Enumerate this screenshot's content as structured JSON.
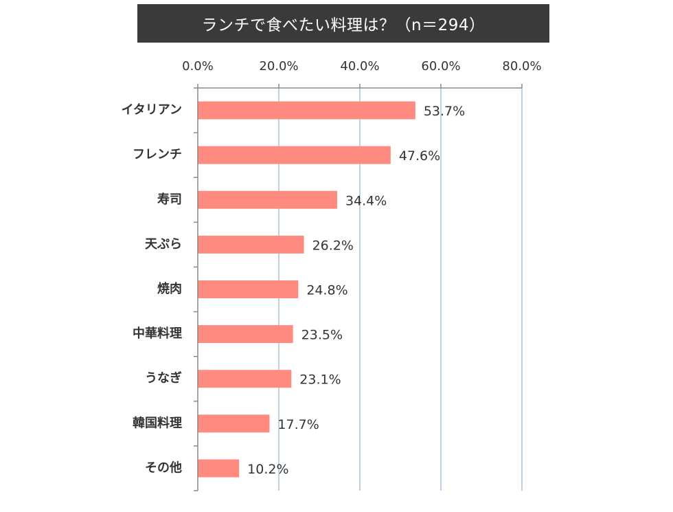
{
  "chart_data": {
    "type": "bar",
    "orientation": "horizontal",
    "title": "ランチで食べたい料理は？（n＝294）",
    "categories": [
      "イタリアン",
      "フレンチ",
      "寿司",
      "天ぷら",
      "焼肉",
      "中華料理",
      "うなぎ",
      "韓国料理",
      "その他"
    ],
    "values": [
      53.7,
      47.6,
      34.4,
      26.2,
      24.8,
      23.5,
      23.1,
      17.7,
      10.2
    ],
    "value_labels": [
      "53.7%",
      "47.6%",
      "34.4%",
      "26.2%",
      "24.8%",
      "23.5%",
      "23.1%",
      "17.7%",
      "10.2%"
    ],
    "xlim": [
      0,
      80
    ],
    "x_ticks": [
      "0.0%",
      "20.0%",
      "40.0%",
      "60.0%",
      "80.0%"
    ],
    "x_axis_position": "top",
    "grid": true,
    "legend": "none",
    "colors": {
      "bar": "#ff8a80",
      "grid": "#a9c4dc",
      "axis": "#888888",
      "title_bg": "#3a3a3a",
      "title_text": "#ffffff"
    }
  }
}
